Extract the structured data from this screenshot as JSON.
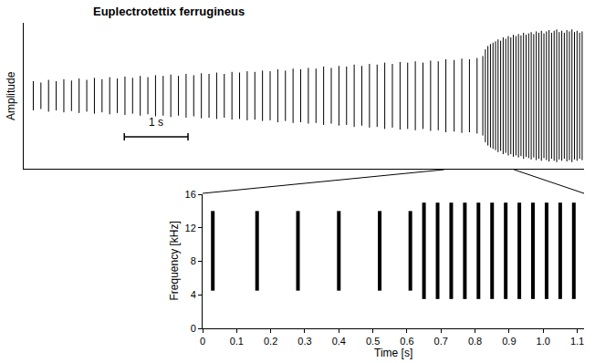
{
  "chart_data": [
    {
      "type": "waveform",
      "title": "Euplectrotettix ferrugineus",
      "y_label": "Amplitude",
      "color": "#000000",
      "tick_labels": false,
      "xlim": [
        0,
        8.8
      ],
      "ylim": [
        -1.1,
        1.1
      ],
      "x": [
        0.15,
        0.27,
        0.39,
        0.51,
        0.63,
        0.75,
        0.87,
        0.99,
        1.11,
        1.23,
        1.35,
        1.47,
        1.59,
        1.71,
        1.83,
        1.95,
        2.07,
        2.19,
        2.31,
        2.43,
        2.55,
        2.67,
        2.79,
        2.91,
        3.03,
        3.15,
        3.27,
        3.39,
        3.51,
        3.63,
        3.75,
        3.87,
        3.99,
        4.11,
        4.23,
        4.35,
        4.47,
        4.59,
        4.71,
        4.83,
        4.95,
        5.07,
        5.19,
        5.31,
        5.43,
        5.55,
        5.67,
        5.79,
        5.91,
        6.03,
        6.15,
        6.27,
        6.39,
        6.51,
        6.63,
        6.76,
        6.88,
        7.0,
        7.12,
        7.21,
        7.25,
        7.29,
        7.33,
        7.37,
        7.41,
        7.45,
        7.49,
        7.53,
        7.57,
        7.61,
        7.65,
        7.69,
        7.73,
        7.77,
        7.81,
        7.85,
        7.89,
        7.93,
        7.97,
        8.01,
        8.05,
        8.09,
        8.13,
        8.17,
        8.21,
        8.25,
        8.29,
        8.33,
        8.37,
        8.41,
        8.45,
        8.49,
        8.53,
        8.57,
        8.61,
        8.65,
        8.69,
        8.73,
        8.77
      ],
      "values": [
        0.22,
        0.2,
        0.24,
        0.22,
        0.25,
        0.23,
        0.26,
        0.24,
        0.27,
        0.25,
        0.28,
        0.26,
        0.29,
        0.27,
        0.3,
        0.28,
        0.31,
        0.3,
        0.32,
        0.3,
        0.33,
        0.31,
        0.34,
        0.33,
        0.35,
        0.33,
        0.36,
        0.35,
        0.37,
        0.36,
        0.38,
        0.37,
        0.4,
        0.38,
        0.41,
        0.4,
        0.42,
        0.41,
        0.44,
        0.42,
        0.45,
        0.44,
        0.47,
        0.45,
        0.48,
        0.47,
        0.5,
        0.48,
        0.51,
        0.5,
        0.52,
        0.5,
        0.53,
        0.52,
        0.55,
        0.54,
        0.56,
        0.55,
        0.57,
        0.6,
        0.7,
        0.75,
        0.78,
        0.8,
        0.82,
        0.85,
        0.83,
        0.88,
        0.86,
        0.9,
        0.88,
        0.92,
        0.9,
        0.93,
        0.91,
        0.95,
        0.92,
        0.94,
        0.96,
        0.93,
        0.97,
        0.95,
        0.98,
        0.94,
        0.97,
        0.99,
        0.95,
        0.98,
        1.0,
        0.96,
        0.98,
        0.95,
        0.99,
        0.97,
        1.0,
        0.96,
        0.98,
        0.95,
        0.97
      ],
      "scale_bar": {
        "x": [
          1.58,
          2.58
        ],
        "label": "1 s"
      },
      "zoom": [
        6.6,
        7.7
      ]
    },
    {
      "type": "spectrogram",
      "x_label": "Time [s]",
      "y_label": "Frequency [kHz]",
      "color": "#000000",
      "xlim": [
        0,
        1.12
      ],
      "ylim": [
        0,
        16
      ],
      "xticks": [
        0,
        0.1,
        0.2,
        0.3,
        0.4,
        0.5,
        0.6,
        0.7,
        0.8,
        0.9,
        {
          "value": 1,
          "label": "1.0"
        },
        1.1
      ],
      "yticks": [
        0,
        4,
        8,
        12,
        16
      ],
      "x": [
        0.03,
        0.16,
        0.28,
        0.4,
        0.52,
        0.61,
        0.65,
        0.69,
        0.73,
        0.77,
        0.81,
        0.85,
        0.89,
        0.93,
        0.97,
        1.01,
        1.05,
        1.09
      ],
      "f_low": [
        4.5,
        4.5,
        4.5,
        4.5,
        4.5,
        4.5,
        3.5,
        3.5,
        3.5,
        3.5,
        3.5,
        3.5,
        3.5,
        3.5,
        3.5,
        3.5,
        3.5,
        3.5
      ],
      "f_high": [
        14,
        14,
        14,
        14,
        14,
        14,
        15,
        15,
        15,
        15,
        15,
        15,
        15,
        15,
        15,
        15,
        15,
        15
      ]
    }
  ]
}
